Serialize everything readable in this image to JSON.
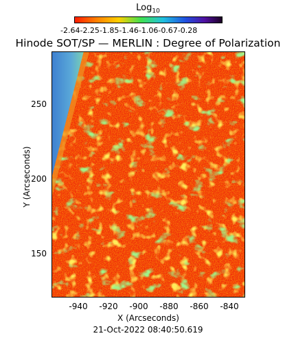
{
  "colorbar": {
    "title": "Log",
    "title_subscript": "10",
    "tick_labels": [
      "-2.64",
      "-2.25",
      "-1.85",
      "-1.46",
      "-1.06",
      "-0.67",
      "-0.28"
    ],
    "colors": [
      "#ff1a00",
      "#ff8000",
      "#ffd000",
      "#40e050",
      "#20c0e0",
      "#2050e0",
      "#5010a0",
      "#1a0020"
    ]
  },
  "title": "Hinode SOT/SP — MERLIN : Degree of Polarization",
  "y_axis": {
    "label": "Y (Arcseconds)",
    "tick_labels": [
      "250",
      "200",
      "150"
    ]
  },
  "x_axis": {
    "label": "X (Arcseconds)",
    "tick_labels": [
      "-940",
      "-920",
      "-900",
      "-880",
      "-860",
      "-840"
    ]
  },
  "timestamp": "21-Oct-2022 08:40:50.619"
}
